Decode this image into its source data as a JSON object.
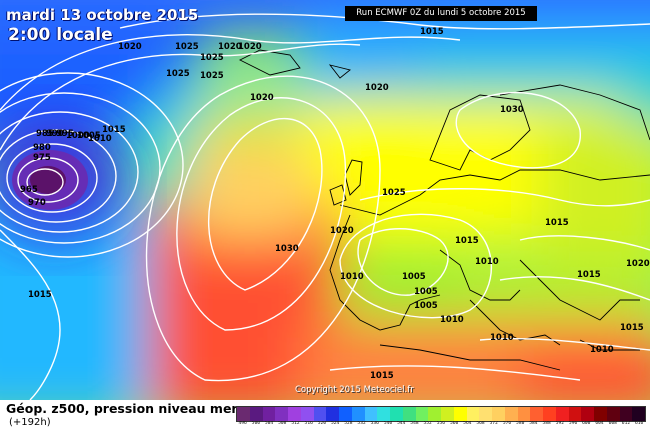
{
  "header": {
    "date": "mardi 13 octobre 2015",
    "local_time": "2:00 locale",
    "run_info": "Run ECMWF 0Z du lundi 5 octobre 2015"
  },
  "map": {
    "isobar_labels": [
      "1015",
      "1020",
      "1025",
      "1020",
      "1020",
      "1025",
      "1025",
      "1025",
      "1020",
      "1015",
      "1010",
      "1005",
      "1000",
      "995",
      "990",
      "985",
      "980",
      "975",
      "970",
      "965",
      "1030",
      "1025",
      "1020",
      "1015",
      "1010",
      "1005",
      "1005",
      "1005",
      "1030",
      "1015",
      "1020",
      "1015",
      "1010",
      "1015",
      "1010",
      "1015",
      "1015",
      "1010",
      "1010",
      "1020"
    ],
    "copyright": "Copyright 2015 Meteociel.fr",
    "colors": {
      "ocean_low": "#3050ff",
      "low_center": "#4a1080",
      "mid": "#8cf060",
      "high": "#ff4020",
      "land_lines": "#000000",
      "isobars": "#ffffff"
    }
  },
  "footer": {
    "title": "Géop. z500, pression niveau mer",
    "subtitle": "(+192h)"
  },
  "scale": {
    "colors": [
      "#6a2a70",
      "#5a1a80",
      "#7020a0",
      "#8030c0",
      "#a040e0",
      "#9050f0",
      "#5050f0",
      "#2030e0",
      "#1060ff",
      "#2090ff",
      "#40c0ff",
      "#30e0e0",
      "#20e0b0",
      "#40e080",
      "#70f060",
      "#a0f030",
      "#d0f020",
      "#ffff00",
      "#fff060",
      "#ffe070",
      "#ffd060",
      "#ffb050",
      "#ff9040",
      "#ff6030",
      "#ff4020",
      "#f02020",
      "#d01010",
      "#b00010",
      "#800000",
      "#600010",
      "#400020",
      "#200020"
    ],
    "ticks": [
      "496",
      "500",
      "504",
      "508",
      "512",
      "516",
      "520",
      "524",
      "528",
      "532",
      "536",
      "540",
      "544",
      "548",
      "552",
      "556",
      "560",
      "564",
      "568",
      "572",
      "576",
      "580",
      "584",
      "588",
      "592",
      "596",
      "600",
      "604",
      "608",
      "612",
      "616"
    ]
  }
}
